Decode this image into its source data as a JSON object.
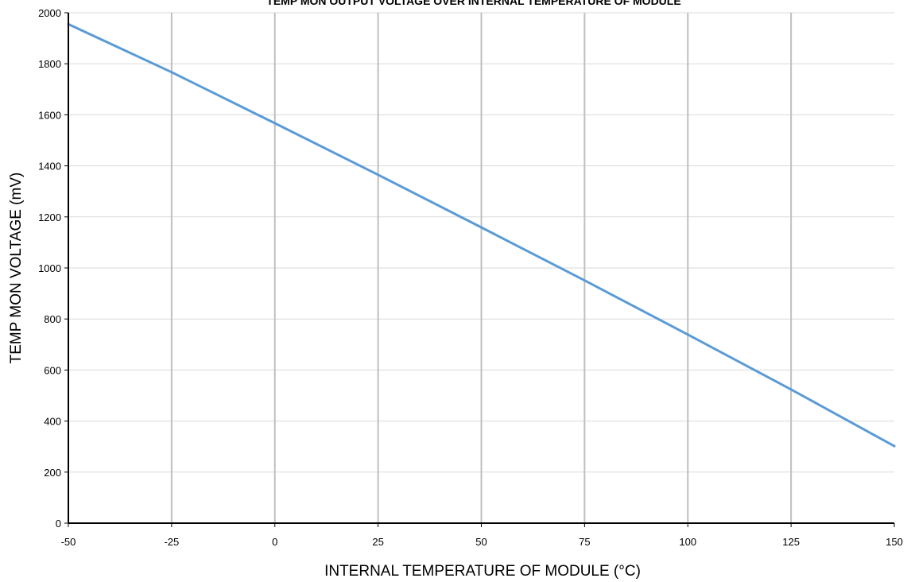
{
  "chart_data": {
    "type": "line",
    "title": "TEMP MON OUTPUT VOLTAGE OVER INTERNAL TEMPERATURE OF MODULE",
    "xlabel": "INTERNAL TEMPERATURE OF MODULE (°C)",
    "ylabel": "TEMP MON VOLTAGE (mV)",
    "xlim": [
      -50,
      150
    ],
    "ylim": [
      0,
      2000
    ],
    "x_ticks": [
      -50,
      -25,
      0,
      25,
      50,
      75,
      100,
      125,
      150
    ],
    "y_ticks": [
      0,
      200,
      400,
      600,
      800,
      1000,
      1200,
      1400,
      1600,
      1800,
      2000
    ],
    "vertical_grid": true,
    "horizontal_grid": true,
    "colors": {
      "line": "#5b9bd5",
      "vertical_grid": "#bfbfbf",
      "horizontal_grid": "#d9d9d9",
      "axis": "#000000"
    },
    "series": [
      {
        "x": [
          -50,
          -25,
          0,
          25,
          50,
          75,
          100,
          125,
          150
        ],
        "y": [
          1955,
          1767,
          1567,
          1365,
          1159,
          951,
          739,
          524,
          302
        ]
      }
    ]
  }
}
